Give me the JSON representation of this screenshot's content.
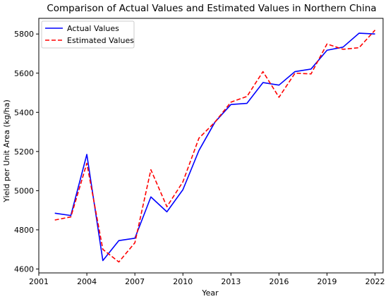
{
  "chart_data": {
    "type": "line",
    "title": "Comparison of Actual Values and Estimated Values in Northern China",
    "xlabel": "Year",
    "ylabel": "Yield per Unit Area (kg/ha)",
    "xlim": [
      2001,
      2022.5
    ],
    "ylim": [
      4580,
      5880
    ],
    "xticks": [
      2001,
      2004,
      2007,
      2010,
      2013,
      2016,
      2019,
      2022
    ],
    "yticks": [
      4600,
      4800,
      5000,
      5200,
      5400,
      5600,
      5800
    ],
    "grid": false,
    "legend_position": "top-left",
    "x": [
      2002,
      2003,
      2004,
      2005,
      2006,
      2007,
      2008,
      2009,
      2010,
      2011,
      2012,
      2013,
      2014,
      2015,
      2016,
      2017,
      2018,
      2019,
      2020,
      2021,
      2022
    ],
    "series": [
      {
        "name": "Actual Values",
        "color": "#0000ff",
        "style": "solid",
        "values": [
          4885,
          4873,
          5185,
          4643,
          4745,
          4757,
          4968,
          4892,
          5005,
          5205,
          5350,
          5440,
          5446,
          5552,
          5539,
          5608,
          5621,
          5717,
          5733,
          5804,
          5800
        ]
      },
      {
        "name": "Estimated Values",
        "color": "#ff0000",
        "style": "dashed",
        "values": [
          4850,
          4866,
          5140,
          4700,
          4636,
          4734,
          5107,
          4918,
          5045,
          5268,
          5350,
          5452,
          5481,
          5608,
          5477,
          5600,
          5596,
          5749,
          5722,
          5730,
          5820
        ]
      }
    ]
  }
}
